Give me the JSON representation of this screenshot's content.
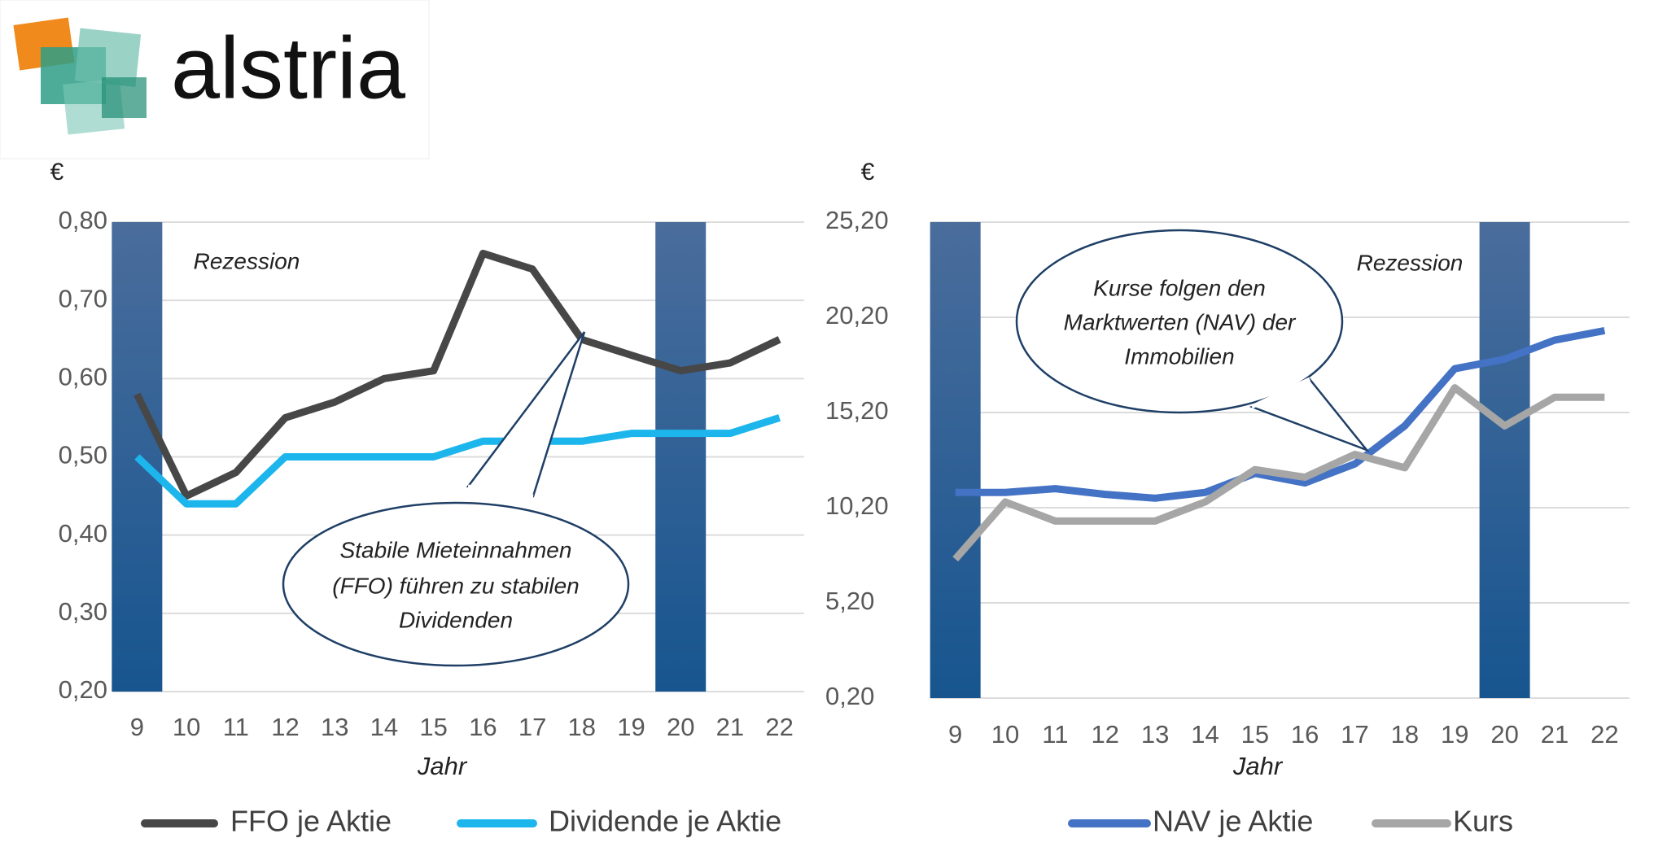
{
  "logo": "alstria",
  "chart_data": [
    {
      "type": "line",
      "unit_label": "€",
      "x_label": "Jahr",
      "categories": [
        "9",
        "10",
        "11",
        "12",
        "13",
        "14",
        "15",
        "16",
        "17",
        "18",
        "19",
        "20",
        "21",
        "22"
      ],
      "ylim": [
        0.2,
        0.8
      ],
      "yticks": [
        {
          "value": 0.2,
          "label": "0,20"
        },
        {
          "value": 0.3,
          "label": "0,30"
        },
        {
          "value": 0.4,
          "label": "0,40"
        },
        {
          "value": 0.5,
          "label": "0,50"
        },
        {
          "value": 0.6,
          "label": "0,60"
        },
        {
          "value": 0.7,
          "label": "0,70"
        },
        {
          "value": 0.8,
          "label": "0,80"
        }
      ],
      "grid": true,
      "recession": {
        "label": "Rezession",
        "categories": [
          "9",
          "20"
        ]
      },
      "callout": [
        "Stabile Mieteinnahmen",
        "(FFO) führen zu stabilen",
        "Dividenden"
      ],
      "series": [
        {
          "name": "FFO je Aktie",
          "color": "#474747",
          "values": [
            0.58,
            0.45,
            0.48,
            0.55,
            0.57,
            0.6,
            0.61,
            0.76,
            0.74,
            0.65,
            0.63,
            0.61,
            0.62,
            0.65
          ]
        },
        {
          "name": "Dividende je Aktie",
          "color": "#1cb5ec",
          "values": [
            0.5,
            0.44,
            0.44,
            0.5,
            0.5,
            0.5,
            0.5,
            0.52,
            0.52,
            0.52,
            0.53,
            0.53,
            0.53,
            0.55
          ]
        }
      ]
    },
    {
      "type": "line",
      "unit_label": "€",
      "x_label": "Jahr",
      "categories": [
        "9",
        "10",
        "11",
        "12",
        "13",
        "14",
        "15",
        "16",
        "17",
        "18",
        "19",
        "20",
        "21",
        "22"
      ],
      "ylim": [
        0.2,
        25.2
      ],
      "yticks": [
        {
          "value": 0.2,
          "label": "0,20"
        },
        {
          "value": 5.2,
          "label": "5,20"
        },
        {
          "value": 10.2,
          "label": "10,20"
        },
        {
          "value": 15.2,
          "label": "15,20"
        },
        {
          "value": 20.2,
          "label": "20,20"
        },
        {
          "value": 25.2,
          "label": "25,20"
        }
      ],
      "grid": true,
      "recession": {
        "label": "Rezession",
        "categories": [
          "9",
          "20"
        ]
      },
      "callout": [
        "Kurse folgen den",
        "Marktwerten (NAV) der",
        "Immobilien"
      ],
      "series": [
        {
          "name": "NAV je Aktie",
          "color": "#4472c4",
          "values": [
            11.0,
            11.0,
            11.2,
            10.9,
            10.7,
            11.0,
            12.0,
            11.5,
            12.5,
            14.5,
            17.5,
            18.0,
            19.0,
            19.5
          ]
        },
        {
          "name": "Kurs",
          "color": "#a6a6a6",
          "values": [
            7.5,
            10.5,
            9.5,
            9.5,
            9.5,
            10.5,
            12.2,
            11.8,
            13.0,
            12.3,
            16.5,
            14.5,
            16.0,
            16.0
          ]
        }
      ]
    }
  ]
}
